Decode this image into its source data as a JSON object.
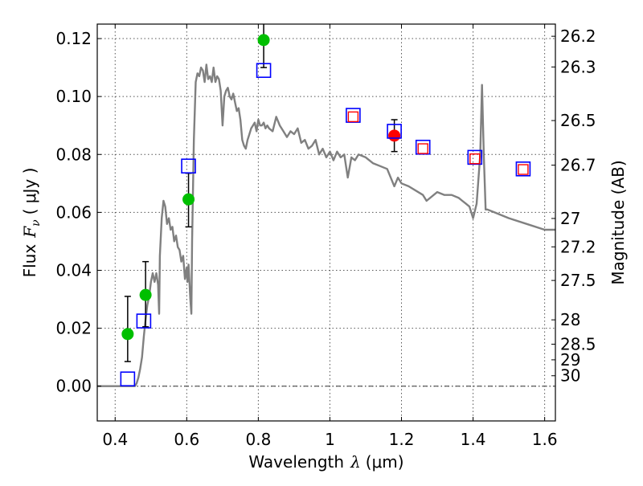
{
  "chart_data": {
    "type": "scatter",
    "xlabel": "Wavelength",
    "xlabel_symbol": "λ",
    "xlabel_unit": "(μm)",
    "ylabel": "Flux",
    "ylabel_symbol": "F",
    "ylabel_subscript": "ν",
    "ylabel_unit": "( μJy )",
    "y2label": "Magnitude (AB)",
    "xlim": [
      0.35,
      1.63
    ],
    "ylim": [
      -0.012,
      0.125
    ],
    "grid": true,
    "x_ticks": [
      0.4,
      0.6,
      0.8,
      1.0,
      1.2,
      1.4,
      1.6
    ],
    "x_tick_labels": [
      "0.4",
      "0.6",
      "0.8",
      "1",
      "1.2",
      "1.4",
      "1.6"
    ],
    "y_ticks": [
      0.0,
      0.02,
      0.04,
      0.06,
      0.08,
      0.1,
      0.12
    ],
    "y_tick_labels": [
      "0.00",
      "0.02",
      "0.04",
      "0.06",
      "0.08",
      "0.10",
      "0.12"
    ],
    "mag_ticks": [
      {
        "label": "26.2",
        "flux": 0.1208
      },
      {
        "label": "26.3",
        "flux": 0.1102
      },
      {
        "label": "26.5",
        "flux": 0.0917
      },
      {
        "label": "26.7",
        "flux": 0.0763
      },
      {
        "label": "27",
        "flux": 0.0579
      },
      {
        "label": "27.2",
        "flux": 0.0481
      },
      {
        "label": "27.5",
        "flux": 0.0365
      },
      {
        "label": "28",
        "flux": 0.0229
      },
      {
        "label": "28.5",
        "flux": 0.0145
      },
      {
        "label": "29",
        "flux": 0.0091
      },
      {
        "label": "30",
        "flux": 0.0036
      }
    ],
    "series": [
      {
        "name": "model-sed",
        "style": "line",
        "color": "#808080",
        "x": [
          0.35,
          0.455,
          0.46,
          0.465,
          0.47,
          0.475,
          0.48,
          0.485,
          0.49,
          0.495,
          0.5,
          0.505,
          0.51,
          0.515,
          0.52,
          0.523,
          0.525,
          0.53,
          0.535,
          0.54,
          0.545,
          0.55,
          0.555,
          0.56,
          0.565,
          0.57,
          0.575,
          0.58,
          0.585,
          0.59,
          0.595,
          0.6,
          0.602,
          0.605,
          0.61,
          0.613,
          0.615,
          0.62,
          0.625,
          0.63,
          0.635,
          0.64,
          0.645,
          0.65,
          0.655,
          0.66,
          0.665,
          0.67,
          0.675,
          0.68,
          0.685,
          0.69,
          0.695,
          0.7,
          0.705,
          0.71,
          0.715,
          0.72,
          0.725,
          0.73,
          0.735,
          0.74,
          0.745,
          0.75,
          0.755,
          0.76,
          0.765,
          0.77,
          0.775,
          0.78,
          0.785,
          0.79,
          0.795,
          0.8,
          0.805,
          0.81,
          0.815,
          0.82,
          0.825,
          0.83,
          0.84,
          0.85,
          0.86,
          0.87,
          0.88,
          0.89,
          0.9,
          0.91,
          0.92,
          0.93,
          0.94,
          0.95,
          0.96,
          0.97,
          0.98,
          0.99,
          1.0,
          1.01,
          1.02,
          1.03,
          1.04,
          1.05,
          1.06,
          1.07,
          1.08,
          1.1,
          1.12,
          1.14,
          1.16,
          1.18,
          1.19,
          1.2,
          1.22,
          1.26,
          1.27,
          1.3,
          1.32,
          1.34,
          1.36,
          1.37,
          1.38,
          1.39,
          1.4,
          1.41,
          1.42,
          1.425,
          1.43,
          1.435,
          1.44,
          1.46,
          1.5,
          1.55,
          1.6,
          1.63
        ],
        "y": [
          0.0,
          0.0,
          0.001,
          0.003,
          0.006,
          0.01,
          0.017,
          0.023,
          0.028,
          0.031,
          0.036,
          0.039,
          0.036,
          0.039,
          0.035,
          0.025,
          0.045,
          0.058,
          0.064,
          0.062,
          0.056,
          0.058,
          0.054,
          0.055,
          0.05,
          0.052,
          0.048,
          0.047,
          0.043,
          0.045,
          0.037,
          0.041,
          0.036,
          0.042,
          0.03,
          0.025,
          0.05,
          0.085,
          0.105,
          0.108,
          0.107,
          0.11,
          0.109,
          0.105,
          0.111,
          0.106,
          0.107,
          0.105,
          0.11,
          0.105,
          0.107,
          0.106,
          0.102,
          0.09,
          0.1,
          0.102,
          0.103,
          0.1,
          0.099,
          0.101,
          0.098,
          0.095,
          0.096,
          0.092,
          0.085,
          0.083,
          0.082,
          0.085,
          0.087,
          0.089,
          0.09,
          0.091,
          0.088,
          0.092,
          0.09,
          0.09,
          0.091,
          0.089,
          0.09,
          0.089,
          0.088,
          0.093,
          0.09,
          0.088,
          0.086,
          0.088,
          0.087,
          0.089,
          0.084,
          0.085,
          0.082,
          0.083,
          0.085,
          0.08,
          0.082,
          0.079,
          0.081,
          0.078,
          0.081,
          0.079,
          0.08,
          0.072,
          0.079,
          0.078,
          0.08,
          0.079,
          0.077,
          0.076,
          0.075,
          0.069,
          0.072,
          0.07,
          0.069,
          0.066,
          0.064,
          0.067,
          0.066,
          0.066,
          0.065,
          0.064,
          0.063,
          0.062,
          0.058,
          0.063,
          0.08,
          0.104,
          0.08,
          0.061,
          0.061,
          0.06,
          0.058,
          0.056,
          0.054,
          0.054
        ]
      },
      {
        "name": "observed-green",
        "style": "marker",
        "marker": "circle",
        "color": "#00bf00",
        "x": [
          0.435,
          0.485,
          0.605,
          0.815
        ],
        "y": [
          0.018,
          0.0315,
          0.0645,
          0.1195
        ],
        "yerr_low": [
          0.0085,
          0.0205,
          0.055,
          0.11
        ],
        "yerr_high": [
          0.031,
          0.043,
          0.0735,
          0.126
        ]
      },
      {
        "name": "observed-red",
        "style": "marker",
        "marker": "circle",
        "color": "#ff0000",
        "x": [
          1.18
        ],
        "y": [
          0.0865
        ],
        "yerr_low": [
          0.081
        ],
        "yerr_high": [
          0.092
        ]
      },
      {
        "name": "model-photometry-blue",
        "style": "marker",
        "marker": "square-open",
        "color": "#0000ff",
        "x": [
          0.435,
          0.48,
          0.605,
          0.815,
          1.065,
          1.18,
          1.26,
          1.405,
          1.54
        ],
        "y": [
          0.0025,
          0.0225,
          0.076,
          0.109,
          0.0935,
          0.088,
          0.0825,
          0.079,
          0.075
        ]
      },
      {
        "name": "model-photometry-red",
        "style": "marker",
        "marker": "square-open-small",
        "color": "#ff0000",
        "x": [
          1.065,
          1.26,
          1.405,
          1.54
        ],
        "y": [
          0.093,
          0.082,
          0.0785,
          0.0748
        ]
      }
    ]
  }
}
